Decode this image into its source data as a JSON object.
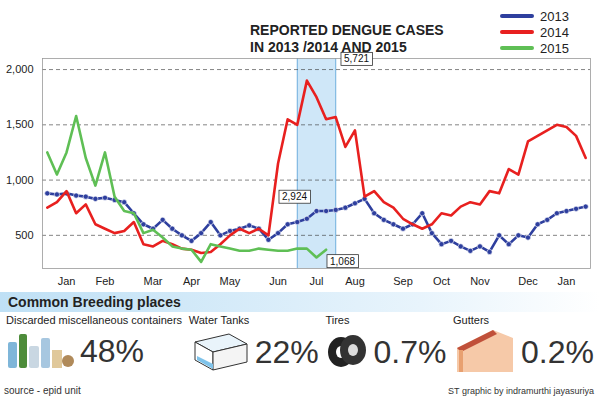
{
  "chart_data": {
    "type": "line",
    "title": "REPORTED DENGUE CASES IN 2013 /2014 AND 2015",
    "categories": [
      null,
      null,
      "Jan",
      null,
      null,
      null,
      "Feb",
      null,
      null,
      null,
      null,
      "Mar",
      null,
      null,
      null,
      "Apr",
      null,
      null,
      null,
      "May",
      null,
      null,
      null,
      null,
      "Jun",
      null,
      null,
      null,
      "Jul",
      null,
      null,
      null,
      "Aug",
      null,
      null,
      null,
      null,
      "Sep",
      null,
      null,
      null,
      "Oct",
      null,
      null,
      null,
      "Nov",
      null,
      null,
      null,
      null,
      "Dec",
      null,
      null,
      null,
      "Jan",
      null,
      null
    ],
    "series": [
      {
        "name": "2013",
        "color": "#2e3f9e",
        "marker": "circle",
        "values": [
          880,
          870,
          880,
          860,
          850,
          830,
          840,
          820,
          800,
          700,
          600,
          560,
          640,
          560,
          500,
          450,
          520,
          620,
          500,
          540,
          560,
          590,
          560,
          460,
          520,
          600,
          620,
          650,
          720,
          720,
          730,
          750,
          790,
          830,
          700,
          640,
          600,
          560,
          600,
          700,
          520,
          420,
          450,
          400,
          360,
          400,
          350,
          500,
          420,
          500,
          480,
          600,
          640,
          700,
          720,
          740,
          760
        ]
      },
      {
        "name": "2014",
        "color": "#e8201f",
        "values": [
          750,
          800,
          900,
          700,
          780,
          600,
          560,
          520,
          540,
          620,
          420,
          400,
          450,
          420,
          380,
          370,
          340,
          350,
          420,
          500,
          560,
          520,
          560,
          500,
          1150,
          1550,
          1500,
          1900,
          1750,
          1550,
          1570,
          1300,
          1450,
          850,
          900,
          800,
          750,
          650,
          600,
          560,
          600,
          700,
          680,
          760,
          800,
          780,
          900,
          880,
          1100,
          1050,
          1350,
          1400,
          1450,
          1500,
          1480,
          1400,
          1200
        ]
      },
      {
        "name": "2015",
        "color": "#5fbf55",
        "values": [
          1250,
          1050,
          1250,
          1580,
          1200,
          950,
          1250,
          850,
          720,
          700,
          520,
          550,
          480,
          400,
          380,
          370,
          260,
          420,
          400,
          380,
          360,
          360,
          380,
          370,
          360,
          360,
          380,
          380,
          300,
          370,
          null,
          null,
          null,
          null,
          null,
          null,
          null,
          null,
          null,
          null,
          null,
          null,
          null,
          null,
          null,
          null,
          null,
          null,
          null,
          null,
          null,
          null,
          null,
          null,
          null,
          null,
          null
        ]
      }
    ],
    "ylim": [
      200,
      2100
    ],
    "yticks": [
      500,
      {
        "value": 1000,
        "label": "1,000"
      },
      {
        "value": 1500,
        "label": "1,500"
      },
      {
        "value": 2000,
        "label": "2,000"
      }
    ],
    "grid": true,
    "legend": "top-right",
    "annotations": [
      {
        "text": "5,721",
        "series": "2014",
        "category": "Jul"
      },
      {
        "text": "2,924",
        "series": "2013",
        "category": "Jul"
      },
      {
        "text": "1,068",
        "series": "2015",
        "category": "Jul"
      }
    ]
  },
  "breeding_places": {
    "title": "Common Breeding places",
    "items": [
      {
        "name": "Discarded miscellaneous containers",
        "value": 48,
        "label": "48%"
      },
      {
        "name": "Water Tanks",
        "value": 22,
        "label": "22%"
      },
      {
        "name": "Tires",
        "value": 0.7,
        "label": "0.7%"
      },
      {
        "name": "Gutters",
        "value": 0.2,
        "label": "0.2%"
      }
    ]
  },
  "source": "source - epid unit",
  "credit": "ST graphic by indramurthi jayasuriya"
}
